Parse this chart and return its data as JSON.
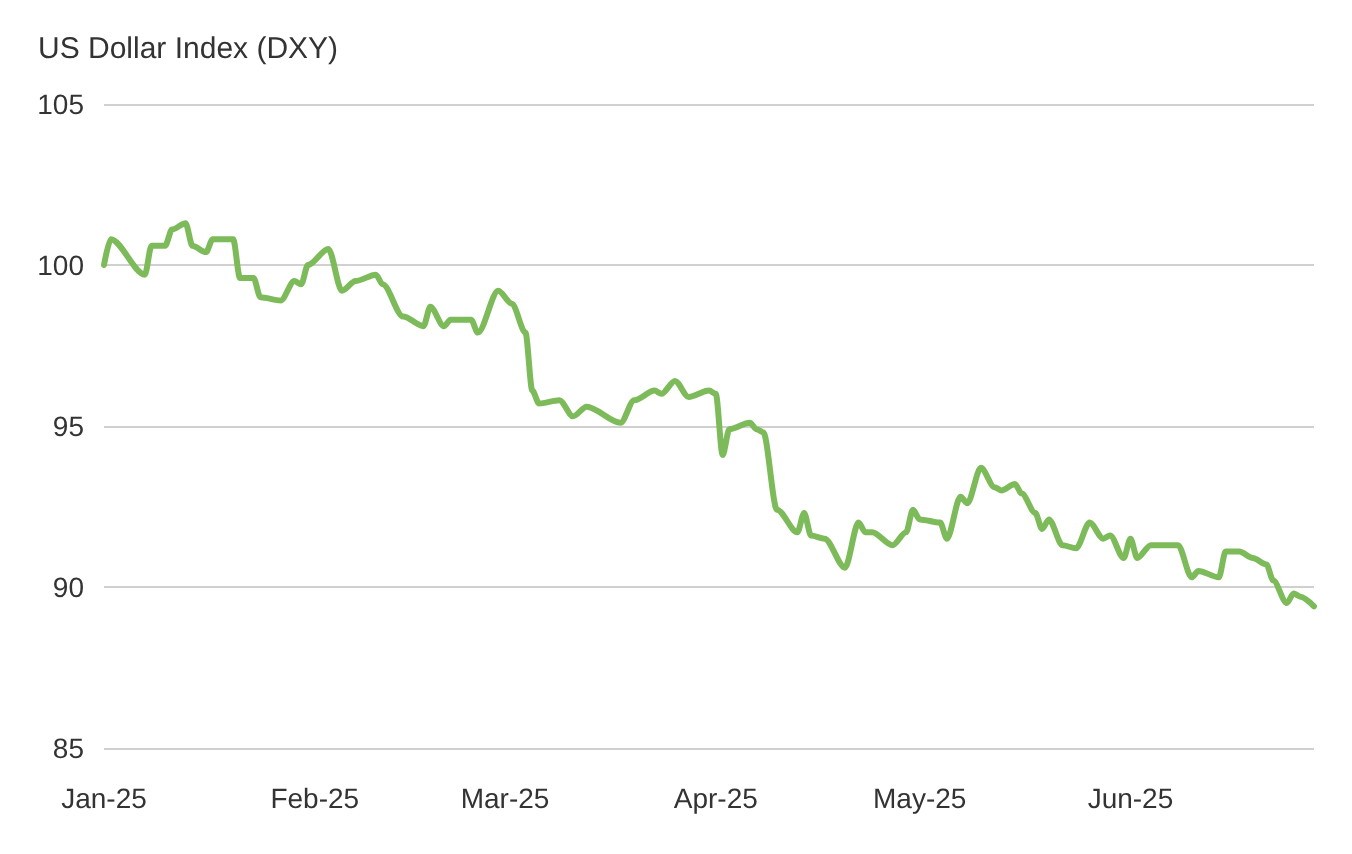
{
  "chart_data": {
    "type": "line",
    "title": "US Dollar Index (DXY)",
    "x": [
      "2025-01-01",
      "2025-01-02",
      "2025-01-07",
      "2025-01-08",
      "2025-01-10",
      "2025-01-11",
      "2025-01-13",
      "2025-01-14",
      "2025-01-16",
      "2025-01-17",
      "2025-01-20",
      "2025-01-21",
      "2025-01-23",
      "2025-01-24",
      "2025-01-27",
      "2025-01-29",
      "2025-01-30",
      "2025-01-31",
      "2025-02-03",
      "2025-02-05",
      "2025-02-07",
      "2025-02-10",
      "2025-02-11",
      "2025-02-14",
      "2025-02-17",
      "2025-02-18",
      "2025-02-20",
      "2025-02-21",
      "2025-02-24",
      "2025-02-25",
      "2025-02-28",
      "2025-03-02",
      "2025-03-04",
      "2025-03-05",
      "2025-03-06",
      "2025-03-09",
      "2025-03-11",
      "2025-03-13",
      "2025-03-18",
      "2025-03-20",
      "2025-03-23",
      "2025-03-24",
      "2025-03-26",
      "2025-03-28",
      "2025-03-31",
      "2025-04-01",
      "2025-04-02",
      "2025-04-03",
      "2025-04-06",
      "2025-04-07",
      "2025-04-08",
      "2025-04-10",
      "2025-04-13",
      "2025-04-14",
      "2025-04-15",
      "2025-04-17",
      "2025-04-20",
      "2025-04-22",
      "2025-04-23",
      "2025-04-24",
      "2025-04-27",
      "2025-04-29",
      "2025-04-30",
      "2025-05-01",
      "2025-05-04",
      "2025-05-05",
      "2025-05-07",
      "2025-05-08",
      "2025-05-10",
      "2025-05-12",
      "2025-05-13",
      "2025-05-15",
      "2025-05-16",
      "2025-05-18",
      "2025-05-19",
      "2025-05-20",
      "2025-05-22",
      "2025-05-24",
      "2025-05-26",
      "2025-05-28",
      "2025-05-29",
      "2025-05-31",
      "2025-06-01",
      "2025-06-02",
      "2025-06-04",
      "2025-06-06",
      "2025-06-08",
      "2025-06-10",
      "2025-06-11",
      "2025-06-14",
      "2025-06-15",
      "2025-06-17",
      "2025-06-19",
      "2025-06-21",
      "2025-06-22",
      "2025-06-24",
      "2025-06-25",
      "2025-06-26",
      "2025-06-28"
    ],
    "series": [
      {
        "color": "#7dbb5a",
        "values": [
          100.0,
          100.8,
          99.7,
          100.6,
          100.6,
          101.1,
          101.3,
          100.6,
          100.4,
          100.8,
          100.8,
          99.6,
          99.6,
          99.0,
          98.9,
          99.5,
          99.4,
          100.0,
          100.5,
          99.2,
          99.5,
          99.7,
          99.4,
          98.4,
          98.1,
          98.7,
          98.1,
          98.3,
          98.3,
          97.9,
          99.2,
          98.8,
          97.9,
          96.1,
          95.7,
          95.8,
          95.3,
          95.6,
          95.1,
          95.8,
          96.1,
          96.0,
          96.4,
          95.9,
          96.1,
          96.0,
          94.1,
          94.9,
          95.1,
          94.9,
          94.8,
          92.4,
          91.7,
          92.3,
          91.6,
          91.5,
          90.6,
          92.0,
          91.7,
          91.7,
          91.3,
          91.7,
          92.4,
          92.1,
          92.0,
          91.5,
          92.8,
          92.6,
          93.7,
          93.1,
          93.0,
          93.2,
          92.9,
          92.3,
          91.8,
          92.1,
          91.3,
          91.2,
          92.0,
          91.5,
          91.6,
          90.9,
          91.5,
          90.9,
          91.3,
          91.3,
          91.3,
          90.3,
          90.5,
          90.3,
          91.1,
          91.1,
          90.9,
          90.7,
          90.2,
          89.5,
          89.8,
          89.7,
          89.4
        ]
      }
    ],
    "xlim": [
      "2025-01-01",
      "2025-06-28"
    ],
    "xticks": [
      {
        "value": "2025-01-01",
        "label": "Jan-25"
      },
      {
        "value": "2025-02-01",
        "label": "Feb-25"
      },
      {
        "value": "2025-03-01",
        "label": "Mar-25"
      },
      {
        "value": "2025-04-01",
        "label": "Apr-25"
      },
      {
        "value": "2025-05-01",
        "label": "May-25"
      },
      {
        "value": "2025-06-01",
        "label": "Jun-25"
      }
    ],
    "ylim": [
      85,
      105
    ],
    "yticks": [
      85,
      90,
      95,
      100,
      105
    ],
    "grid": "y",
    "marker": "none",
    "line_style": "solid"
  }
}
